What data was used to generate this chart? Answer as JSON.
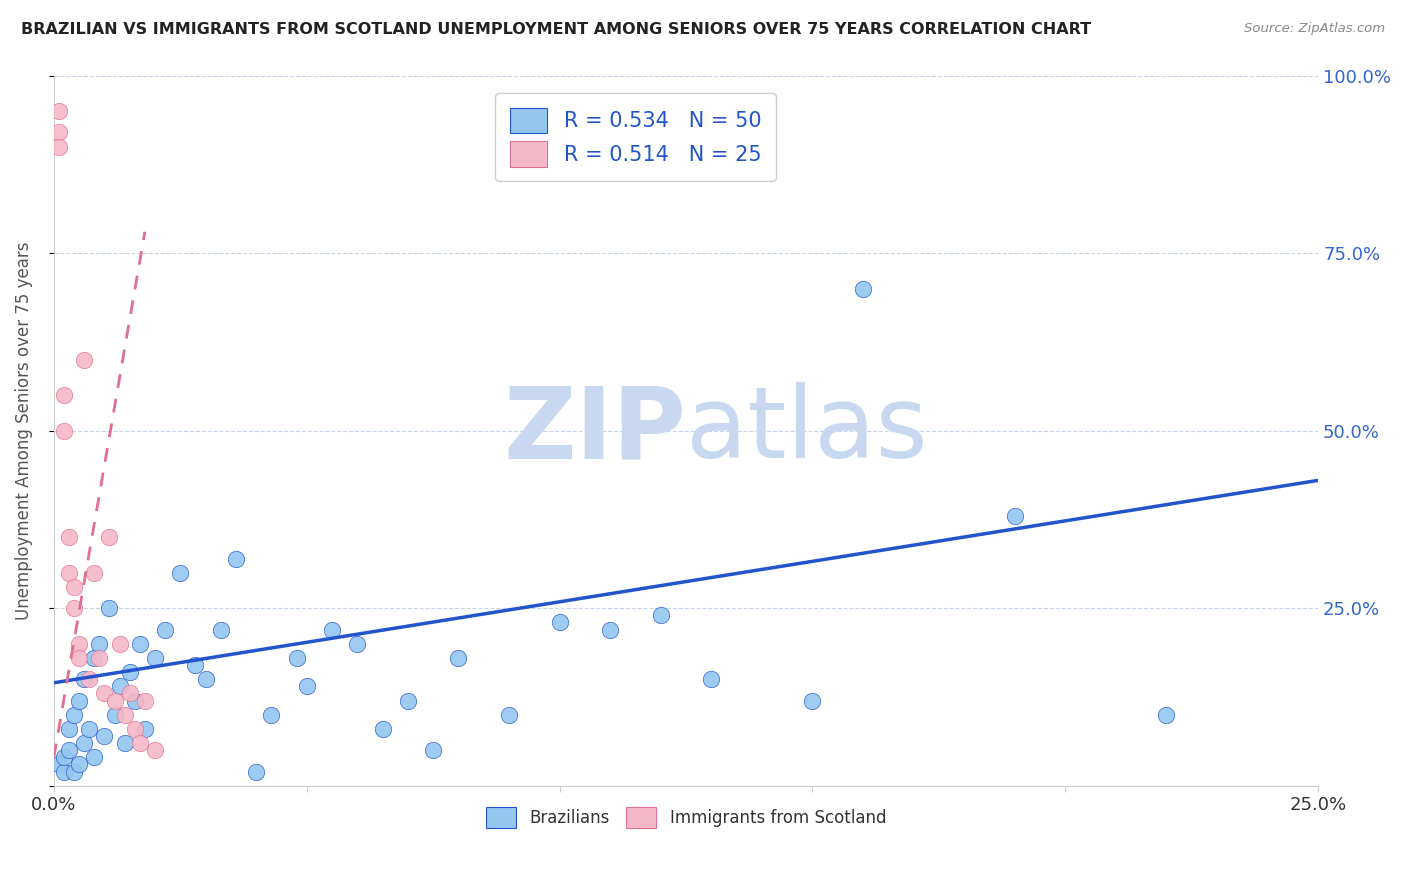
{
  "title": "BRAZILIAN VS IMMIGRANTS FROM SCOTLAND UNEMPLOYMENT AMONG SENIORS OVER 75 YEARS CORRELATION CHART",
  "source": "Source: ZipAtlas.com",
  "ylabel_label": "Unemployment Among Seniors over 75 years",
  "legend_blue_r": "R = 0.534",
  "legend_blue_n": "N = 50",
  "legend_pink_r": "R = 0.514",
  "legend_pink_n": "N = 25",
  "legend_label_blue": "Brazilians",
  "legend_label_pink": "Immigrants from Scotland",
  "blue_color": "#94C6F0",
  "pink_color": "#F5B8C8",
  "trend_blue_color": "#2255CC",
  "trend_pink_color": "#E07090",
  "watermark_zip": "ZIP",
  "watermark_atlas": "atlas",
  "watermark_color_zip": "#C8D8F0",
  "watermark_color_atlas": "#C8D8F0",
  "blue_scatter_x": [
    0.001,
    0.002,
    0.002,
    0.003,
    0.003,
    0.004,
    0.004,
    0.005,
    0.005,
    0.006,
    0.006,
    0.007,
    0.008,
    0.008,
    0.009,
    0.01,
    0.011,
    0.012,
    0.013,
    0.014,
    0.015,
    0.016,
    0.017,
    0.018,
    0.02,
    0.022,
    0.025,
    0.028,
    0.03,
    0.033,
    0.036,
    0.04,
    0.043,
    0.048,
    0.05,
    0.055,
    0.06,
    0.065,
    0.07,
    0.075,
    0.08,
    0.09,
    0.1,
    0.11,
    0.12,
    0.13,
    0.15,
    0.16,
    0.19,
    0.22
  ],
  "blue_scatter_y": [
    0.03,
    0.02,
    0.04,
    0.05,
    0.08,
    0.02,
    0.1,
    0.03,
    0.12,
    0.06,
    0.15,
    0.08,
    0.18,
    0.04,
    0.2,
    0.07,
    0.25,
    0.1,
    0.14,
    0.06,
    0.16,
    0.12,
    0.2,
    0.08,
    0.18,
    0.22,
    0.3,
    0.17,
    0.15,
    0.22,
    0.32,
    0.02,
    0.1,
    0.18,
    0.14,
    0.22,
    0.2,
    0.08,
    0.12,
    0.05,
    0.18,
    0.1,
    0.23,
    0.22,
    0.24,
    0.15,
    0.12,
    0.7,
    0.38,
    0.1
  ],
  "pink_scatter_x": [
    0.001,
    0.001,
    0.001,
    0.002,
    0.002,
    0.003,
    0.003,
    0.004,
    0.004,
    0.005,
    0.005,
    0.006,
    0.007,
    0.008,
    0.009,
    0.01,
    0.011,
    0.012,
    0.013,
    0.014,
    0.015,
    0.016,
    0.017,
    0.018,
    0.02
  ],
  "pink_scatter_y": [
    0.95,
    0.92,
    0.9,
    0.55,
    0.5,
    0.35,
    0.3,
    0.28,
    0.25,
    0.2,
    0.18,
    0.6,
    0.15,
    0.3,
    0.18,
    0.13,
    0.35,
    0.12,
    0.2,
    0.1,
    0.13,
    0.08,
    0.06,
    0.12,
    0.05
  ],
  "blue_trend_x0": 0.0,
  "blue_trend_y0": 0.145,
  "blue_trend_x1": 0.25,
  "blue_trend_y1": 0.43,
  "pink_trend_x0": 0.0,
  "pink_trend_y0": 0.04,
  "pink_trend_x1": 0.018,
  "pink_trend_y1": 0.78,
  "xlim": [
    0.0,
    0.25
  ],
  "ylim": [
    0.0,
    1.0
  ]
}
